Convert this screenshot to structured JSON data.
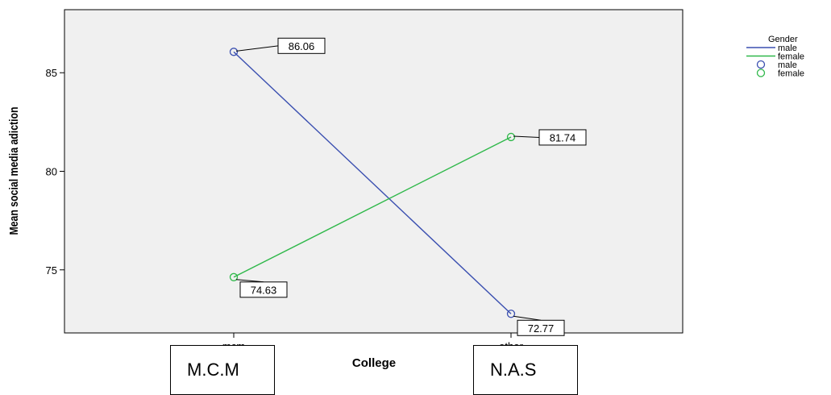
{
  "chart_data": {
    "type": "line",
    "categories": [
      "mcm",
      "other"
    ],
    "ylabel": "Mean social media adiction",
    "xlabel": "College",
    "ylim": [
      71.8,
      88.2
    ],
    "yticks": [
      75,
      80,
      85
    ],
    "grid": false,
    "legend": {
      "title": "Gender",
      "placement": "right",
      "entries": [
        {
          "label": "male",
          "kind": "line",
          "color": "#3a4fb0"
        },
        {
          "label": "female",
          "kind": "line",
          "color": "#2fb84a"
        },
        {
          "label": "male",
          "kind": "marker",
          "color": "#3a4fb0"
        },
        {
          "label": "female",
          "kind": "marker",
          "color": "#2fb84a"
        }
      ]
    },
    "series": [
      {
        "name": "male",
        "color": "#3a4fb0",
        "values": [
          86.06,
          72.77
        ],
        "labels": [
          "86.06",
          "72.77"
        ]
      },
      {
        "name": "female",
        "color": "#2fb84a",
        "values": [
          74.63,
          81.74
        ],
        "labels": [
          "74.63",
          "81.74"
        ]
      }
    ]
  },
  "overlay": {
    "boxes": [
      "M.C.M",
      "N.A.S"
    ]
  }
}
